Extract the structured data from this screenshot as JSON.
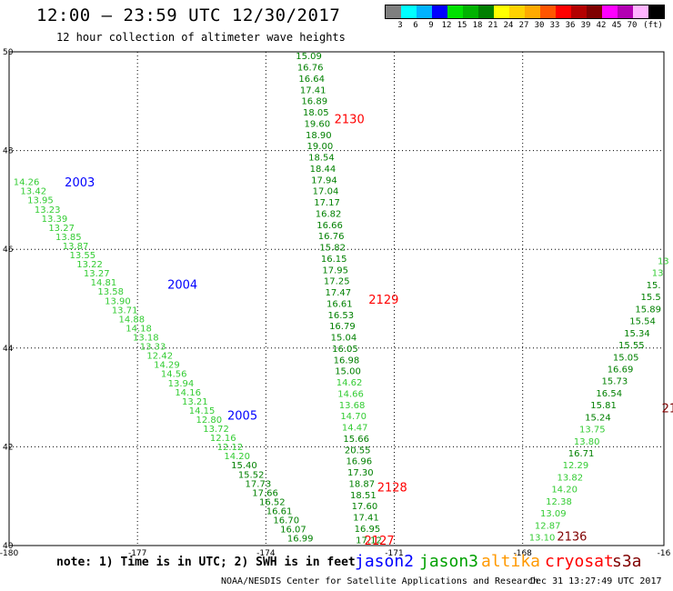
{
  "header": {
    "title": "12:00 – 23:59 UTC 12/30/2017",
    "subtitle": "12 hour collection of altimeter wave heights"
  },
  "colorbar": {
    "colors": [
      "#7f7f7f",
      "#00ffff",
      "#00b3ff",
      "#0000ff",
      "#00e100",
      "#00b300",
      "#007f00",
      "#ffff00",
      "#ffd200",
      "#ffaa00",
      "#ff5500",
      "#ff0000",
      "#b30000",
      "#7f0000",
      "#ff00ff",
      "#b300b3",
      "#ffb3ff",
      "#000000"
    ],
    "labels": [
      "3",
      "6",
      "9",
      "12",
      "15",
      "18",
      "21",
      "24",
      "27",
      "30",
      "33",
      "36",
      "39",
      "42",
      "45",
      "70",
      "(ft)"
    ]
  },
  "map": {
    "lat_ticks": [
      "50",
      "48",
      "46",
      "44",
      "42",
      "40"
    ],
    "lon_ticks": [
      "-180",
      "-177",
      "-174",
      "-171",
      "-168",
      "-16"
    ]
  },
  "chart_data": {
    "type": "scatter",
    "xlabel": "",
    "ylabel": "",
    "lon_range": [
      -180,
      -164.7
    ],
    "lat_range": [
      40,
      50
    ],
    "tracks": [
      {
        "id": "track-left",
        "satellite": "jason3",
        "start": [
          -179.9,
          47.3
        ],
        "end": [
          -173.5,
          40.08
        ],
        "values": [
          "14.26",
          "13.42",
          "13.95",
          "13.23",
          "13.39",
          "13.27",
          "13.85",
          "13.87",
          "13.55",
          "13.22",
          "13.27",
          "14.81",
          "13.58",
          "13.90",
          "13.71",
          "14.88",
          "14.18",
          "13.18",
          "13.33",
          "12.42",
          "14.29",
          "14.56",
          "13.94",
          "14.16",
          "13.21",
          "14.15",
          "12.80",
          "13.72",
          "12.16",
          "12.12",
          "14.20",
          "15.40",
          "15.52",
          "17.73",
          "17.66",
          "16.52",
          "16.61",
          "16.70",
          "16.07",
          "16.99"
        ]
      },
      {
        "id": "track-middle",
        "satellite": "jason3",
        "start": [
          -173.3,
          49.85
        ],
        "end": [
          -171.9,
          40.05
        ],
        "values": [
          "15.09",
          "16.76",
          "16.64",
          "17.41",
          "16.89",
          "18.05",
          "19.60",
          "18.90",
          "19.00",
          "18.54",
          "18.44",
          "17.94",
          "17.04",
          "17.17",
          "16.82",
          "16.66",
          "16.76",
          "15.82",
          "16.15",
          "17.95",
          "17.25",
          "17.47",
          "16.61",
          "16.53",
          "16.79",
          "15.04",
          "16.05",
          "16.98",
          "15.00",
          "14.62",
          "14.66",
          "13.68",
          "14.70",
          "14.47",
          "15.66",
          "20.55",
          "16.96",
          "17.30",
          "18.87",
          "18.51",
          "17.60",
          "17.41",
          "16.95",
          "17.12"
        ]
      },
      {
        "id": "track-right",
        "satellite": "jason3",
        "start": [
          -167.85,
          40.1
        ],
        "end": [
          -164.85,
          45.7
        ],
        "values": [
          "13.10",
          "12.87",
          "13.09",
          "12.38",
          "14.20",
          "13.82",
          "12.29",
          "16.71",
          "13.80",
          "13.75",
          "15.24",
          "15.81",
          "16.54",
          "15.73",
          "16.69",
          "15.05",
          "15.55",
          "15.34",
          "15.54",
          "15.89",
          "15.5",
          "15.",
          "13",
          "13"
        ]
      }
    ],
    "pass_labels": [
      {
        "label": "2003",
        "satellite": "jason2",
        "lon": -178.7,
        "lat": 47.27
      },
      {
        "label": "2004",
        "satellite": "jason2",
        "lon": -176.3,
        "lat": 45.2
      },
      {
        "label": "2005",
        "satellite": "jason2",
        "lon": -174.9,
        "lat": 42.55
      },
      {
        "label": "2130",
        "satellite": "cryosat",
        "lon": -172.4,
        "lat": 48.55
      },
      {
        "label": "2129",
        "satellite": "cryosat",
        "lon": -171.6,
        "lat": 44.9
      },
      {
        "label": "2128",
        "satellite": "cryosat",
        "lon": -171.4,
        "lat": 41.1
      },
      {
        "label": "2127",
        "satellite": "cryosat",
        "lon": -171.7,
        "lat": 40.02
      },
      {
        "label": "2136",
        "satellite": "s3a",
        "lon": -167.2,
        "lat": 40.1
      },
      {
        "label": "21",
        "satellite": "s3a",
        "lon": -164.75,
        "lat": 42.7
      }
    ]
  },
  "legend": {
    "note": "note: 1) Time is in UTC; 2) SWH is in feet",
    "items": [
      {
        "name": "jason2",
        "color": "#0000ff"
      },
      {
        "name": "jason3",
        "color": "#00a000"
      },
      {
        "name": "altika",
        "color": "#ff9900"
      },
      {
        "name": "cryosat",
        "color": "#ff0000"
      },
      {
        "name": "s3a",
        "color": "#800000"
      }
    ]
  },
  "footer": {
    "center": "NOAA/NESDIS Center for Satellite Applications and Research",
    "timestamp": "Dec 31 13:27:49 UTC 2017"
  },
  "colors": {
    "jason2": "#0000ff",
    "jason3_light": "#33cc33",
    "jason3_dark": "#008000",
    "cryosat": "#ff0000",
    "s3a": "#800000"
  }
}
